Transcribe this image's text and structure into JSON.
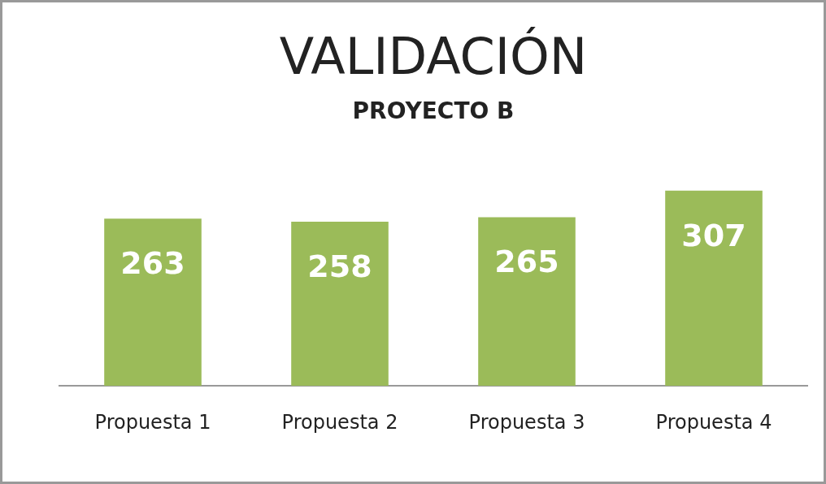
{
  "chart_data": {
    "type": "bar",
    "title": "VALIDACIÓN",
    "subtitle": "PROYECTO B",
    "categories": [
      "Propuesta 1",
      "Propuesta 2",
      "Propuesta 3",
      "Propuesta 4"
    ],
    "values": [
      263,
      258,
      265,
      307
    ],
    "color": "#9bbb59",
    "tick_labels": "x",
    "data_labels": true,
    "grid": false,
    "legend": false
  }
}
